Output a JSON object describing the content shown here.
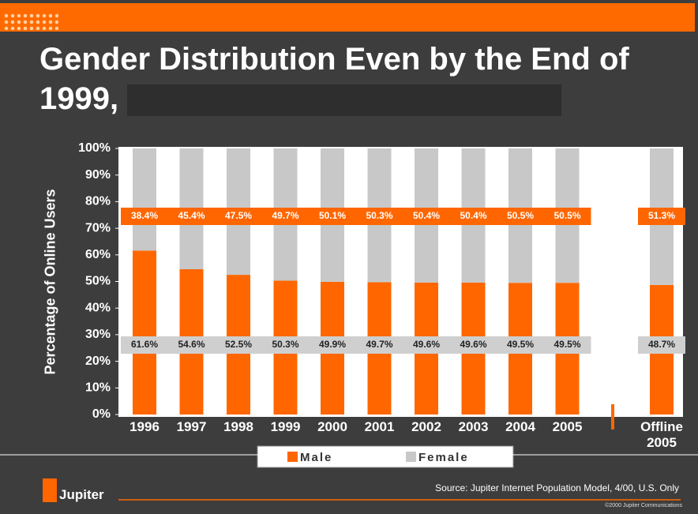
{
  "chart_data": {
    "type": "stacked-bar",
    "title": "Gender Distribution Even by the End of 1999,",
    "y_label": "Percentage of Online Users",
    "categories": [
      "1996",
      "1997",
      "1998",
      "1999",
      "2000",
      "2001",
      "2002",
      "2003",
      "2004",
      "2005",
      "Offline 2005"
    ],
    "series": [
      {
        "name": "Male",
        "color": "#ff6600",
        "values": [
          61.6,
          54.6,
          52.5,
          50.3,
          49.9,
          49.7,
          49.6,
          49.6,
          49.5,
          49.5,
          48.7
        ],
        "value_labels": [
          "61.6%",
          "54.6%",
          "52.5%",
          "50.3%",
          "49.9%",
          "49.7%",
          "49.6%",
          "49.6%",
          "49.5%",
          "49.5%",
          "48.7%"
        ]
      },
      {
        "name": "Female",
        "color": "#c8c8c8",
        "values": [
          38.4,
          45.4,
          47.5,
          49.7,
          50.1,
          50.3,
          50.4,
          50.4,
          50.5,
          50.5,
          51.3
        ],
        "value_labels": [
          "38.4%",
          "45.4%",
          "47.5%",
          "49.7%",
          "50.1%",
          "50.3%",
          "50.4%",
          "50.4%",
          "50.5%",
          "50.5%",
          "51.3%"
        ]
      }
    ],
    "ylim": [
      0,
      100
    ],
    "yticks": [
      {
        "value": 0,
        "label": "0%"
      },
      {
        "value": 10,
        "label": "10%"
      },
      {
        "value": 20,
        "label": "20%"
      },
      {
        "value": 30,
        "label": "30%"
      },
      {
        "value": 40,
        "label": "40%"
      },
      {
        "value": 50,
        "label": "50%"
      },
      {
        "value": 60,
        "label": "60%"
      },
      {
        "value": 70,
        "label": "70%"
      },
      {
        "value": 80,
        "label": "80%"
      },
      {
        "value": 90,
        "label": "90%"
      },
      {
        "value": 100,
        "label": "100%"
      }
    ],
    "source": "Source: Jupiter Internet Population Model, 4/00, U.S. Only",
    "copyright": "©2000 Jupiter Communications",
    "logo": "Jupiter"
  }
}
